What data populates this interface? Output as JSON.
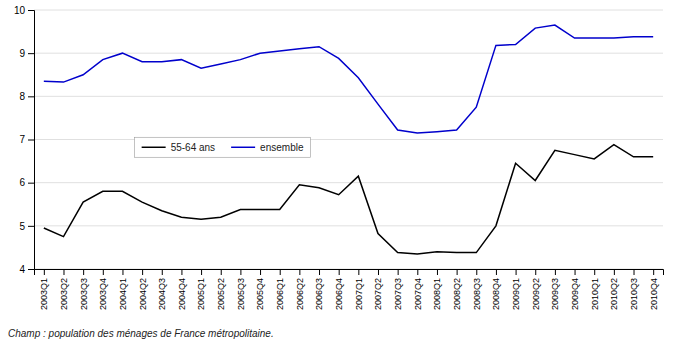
{
  "chart_data": {
    "type": "line",
    "categories": [
      "2003Q1",
      "2003Q2",
      "2003Q3",
      "2003Q4",
      "2004Q1",
      "2004Q2",
      "2004Q3",
      "2004Q4",
      "2005Q1",
      "2005Q2",
      "2005Q3",
      "2005Q4",
      "2006Q1",
      "2006Q2",
      "2006Q3",
      "2006Q4",
      "2007Q1",
      "2007Q2",
      "2007Q3",
      "2007Q4",
      "2008Q1",
      "2008Q2",
      "2008Q3",
      "2008Q4",
      "2009Q1",
      "2009Q2",
      "2009Q3",
      "2009Q4",
      "2010Q1",
      "2010Q2",
      "2010Q3",
      "2010Q4"
    ],
    "series": [
      {
        "name": "55-64 ans",
        "color": "#000000",
        "values": [
          4.95,
          4.75,
          5.55,
          5.8,
          5.8,
          5.55,
          5.35,
          5.2,
          5.15,
          5.2,
          5.38,
          5.38,
          5.38,
          5.95,
          5.88,
          5.72,
          6.15,
          4.82,
          4.38,
          4.35,
          4.4,
          4.38,
          4.38,
          5.0,
          6.45,
          6.05,
          6.75,
          6.65,
          6.55,
          6.88,
          6.6,
          6.6
        ]
      },
      {
        "name": "ensemble",
        "color": "#0000cc",
        "values": [
          8.35,
          8.33,
          8.5,
          8.85,
          9.0,
          8.8,
          8.8,
          8.85,
          8.65,
          8.75,
          8.85,
          9.0,
          9.05,
          9.1,
          9.15,
          8.88,
          8.43,
          7.82,
          7.22,
          7.15,
          7.18,
          7.22,
          7.75,
          9.18,
          9.2,
          9.58,
          9.65,
          9.35,
          9.35,
          9.35,
          9.38,
          9.38
        ]
      }
    ],
    "ylim": [
      4,
      10
    ],
    "yticks": [
      4,
      5,
      6,
      7,
      8,
      9,
      10
    ],
    "grid": true,
    "legend": "left",
    "annotations": [
      "Champ : population des ménages de France métropolitaine."
    ]
  }
}
